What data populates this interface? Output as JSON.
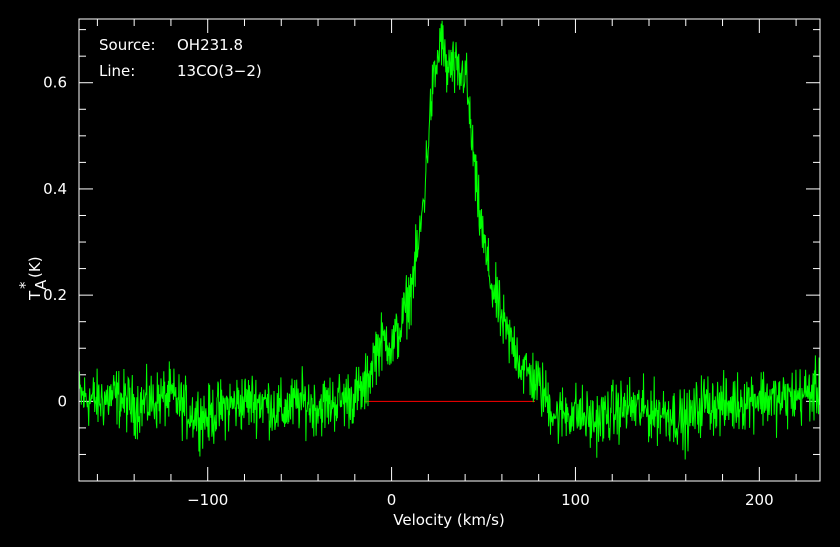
{
  "chart_data": {
    "type": "line",
    "xlabel": "Velocity (km/s)",
    "ylabel_main": "T",
    "ylabel_sub": "A",
    "ylabel_sup": "*",
    "ylabel_unit": "(K)",
    "xlim": [
      -170,
      233
    ],
    "ylim": [
      -0.15,
      0.72
    ],
    "x_ticks": [
      -100,
      0,
      100,
      200
    ],
    "x_tick_labels": [
      "−100",
      "0",
      "100",
      "200"
    ],
    "y_ticks": [
      0,
      0.2,
      0.4,
      0.6
    ],
    "y_tick_labels": [
      "0",
      "0.2",
      "0.4",
      "0.6"
    ],
    "annotations": [
      {
        "label": "Source:",
        "value": "OH231.8"
      },
      {
        "label": "Line:",
        "value": "13CO(3−2)"
      }
    ],
    "baseline": {
      "x_start": -15,
      "x_end": 78,
      "y": 0
    },
    "series": [
      {
        "color": "#00ff00",
        "x": [
          -170,
          -160,
          -150,
          -140,
          -130,
          -120,
          -110,
          -100,
          -90,
          -80,
          -70,
          -60,
          -50,
          -40,
          -30,
          -20,
          -15,
          -12,
          -10,
          -8,
          -5,
          -2,
          0,
          5,
          8,
          10,
          12,
          15,
          18,
          20,
          22,
          25,
          27,
          28,
          30,
          32,
          35,
          38,
          40,
          42,
          44,
          46,
          48,
          50,
          52,
          55,
          58,
          60,
          62,
          65,
          68,
          70,
          72,
          75,
          78,
          80,
          85,
          90,
          95,
          100,
          110,
          120,
          130,
          140,
          150,
          160,
          170,
          180,
          190,
          200,
          210,
          220,
          233
        ],
        "y": [
          0.01,
          0.0,
          0.01,
          -0.01,
          0.0,
          0.01,
          -0.02,
          -0.03,
          -0.01,
          0.0,
          0.0,
          -0.02,
          0.0,
          -0.01,
          0.0,
          0.01,
          0.02,
          0.05,
          0.08,
          0.1,
          0.11,
          0.12,
          0.1,
          0.14,
          0.18,
          0.2,
          0.24,
          0.3,
          0.4,
          0.5,
          0.58,
          0.64,
          0.69,
          0.66,
          0.62,
          0.63,
          0.62,
          0.61,
          0.63,
          0.55,
          0.48,
          0.4,
          0.35,
          0.3,
          0.26,
          0.21,
          0.18,
          0.15,
          0.13,
          0.11,
          0.1,
          0.07,
          0.06,
          0.05,
          0.04,
          0.03,
          0.0,
          -0.03,
          -0.02,
          -0.02,
          -0.04,
          -0.02,
          -0.01,
          -0.02,
          -0.02,
          -0.04,
          0.0,
          -0.01,
          0.0,
          0.01,
          0.0,
          0.01,
          0.02
        ]
      }
    ]
  }
}
